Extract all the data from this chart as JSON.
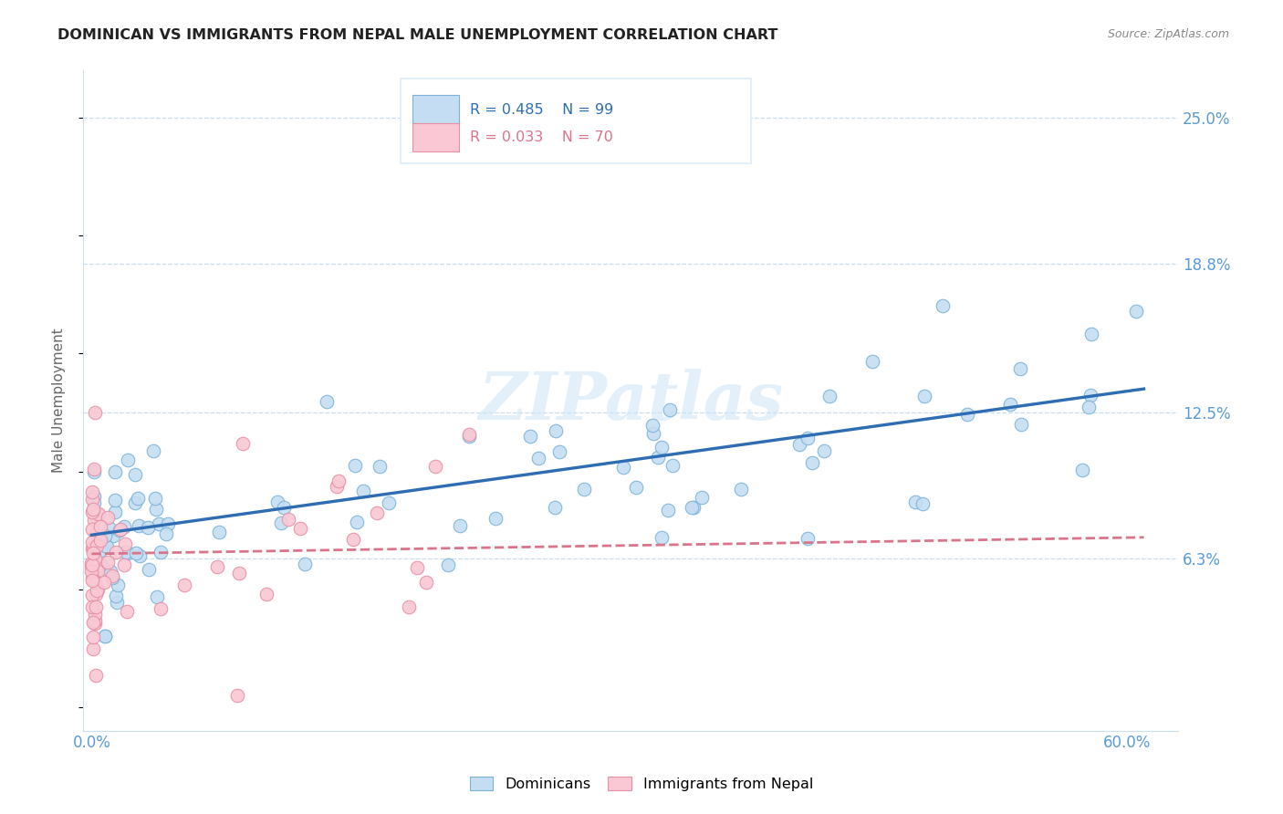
{
  "title": "DOMINICAN VS IMMIGRANTS FROM NEPAL MALE UNEMPLOYMENT CORRELATION CHART",
  "source": "Source: ZipAtlas.com",
  "ylabel": "Male Unemployment",
  "xlim": [
    -0.005,
    0.63
  ],
  "ylim": [
    -0.01,
    0.27
  ],
  "yticks": [
    0.063,
    0.125,
    0.188,
    0.25
  ],
  "ytick_labels": [
    "6.3%",
    "12.5%",
    "18.8%",
    "25.0%"
  ],
  "xticks": [
    0.0,
    0.15,
    0.3,
    0.45,
    0.6
  ],
  "xtick_labels": [
    "0.0%",
    "",
    "",
    "",
    "60.0%"
  ],
  "blue_scatter_face": "#c5ddf2",
  "blue_scatter_edge": "#7ab3d9",
  "pink_scatter_face": "#f9c8d4",
  "pink_scatter_edge": "#e88fa4",
  "blue_line_color": "#2e6db4",
  "pink_line_color": "#d9748a",
  "axis_color": "#5b9bd5",
  "grid_color": "#c8dff0",
  "watermark": "ZIPatlas",
  "title_color": "#222222",
  "source_color": "#888888",
  "ylabel_color": "#666666",
  "legend_box_color": "#dceefa",
  "blue_R": "R = 0.485",
  "blue_N": "N = 99",
  "pink_R": "R = 0.033",
  "pink_N": "N = 70",
  "blue_label": "Dominicans",
  "pink_label": "Immigrants from Nepal",
  "blue_line_start_x": 0.0,
  "blue_line_end_x": 0.61,
  "blue_line_start_y": 0.073,
  "blue_line_end_y": 0.135,
  "pink_line_start_x": 0.0,
  "pink_line_end_x": 0.61,
  "pink_line_start_y": 0.065,
  "pink_line_end_y": 0.072
}
